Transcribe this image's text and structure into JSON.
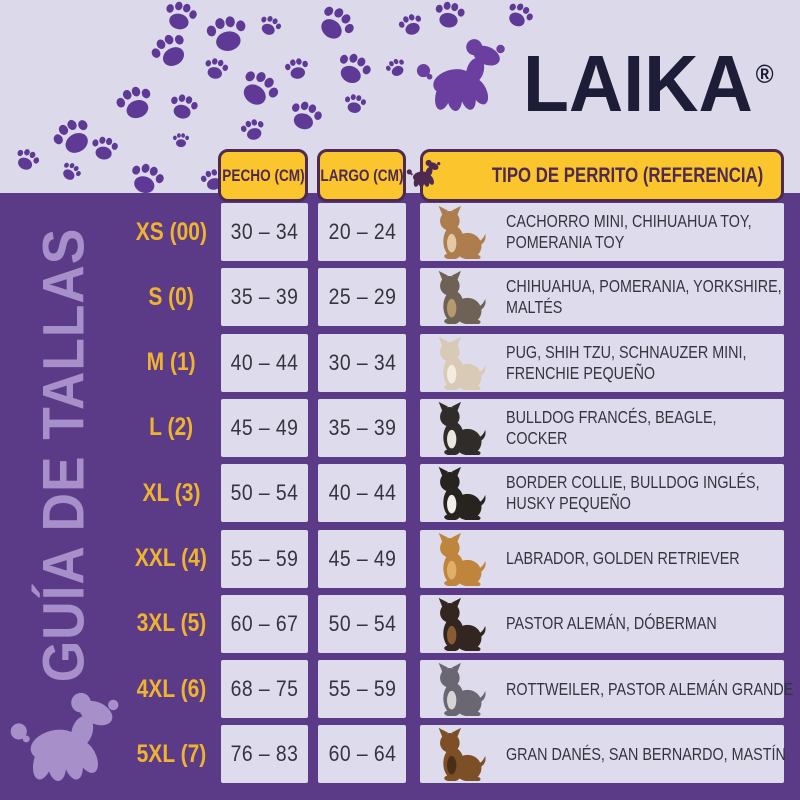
{
  "brand": {
    "name": "LAIKA",
    "registered_mark": "®"
  },
  "sidebar": {
    "title": "GUÍA DE TALLAS"
  },
  "table": {
    "headers": {
      "chest": "PECHO (CM)",
      "length": "LARGO (CM)",
      "reference": "TIPO DE PERRITO (REFERENCIA)"
    },
    "rows": [
      {
        "size": "XS (00)",
        "chest_cm": "30 – 34",
        "length_cm": "20 – 24",
        "breeds": [
          "CACHORRO MINI, CHIHUAHUA TOY,",
          "POMERANIA TOY"
        ],
        "dog": "chihuahua",
        "dog_color": "#ad7d4e",
        "dog_accent": "#e3c9a4"
      },
      {
        "size": "S (0)",
        "chest_cm": "35 – 39",
        "length_cm": "25 – 29",
        "breeds": [
          "CHIHUAHUA, POMERANIA, YORKSHIRE,",
          "MALTÉS"
        ],
        "dog": "yorkshire",
        "dog_color": "#6e6256",
        "dog_accent": "#b59a6d"
      },
      {
        "size": "M (1)",
        "chest_cm": "40 – 44",
        "length_cm": "30 – 34",
        "breeds": [
          "PUG, SHIH TZU, SCHNAUZER MINI,",
          "FRENCHIE PEQUEÑO"
        ],
        "dog": "shih-tzu",
        "dog_color": "#d8cab4",
        "dog_accent": "#f4ece0"
      },
      {
        "size": "L (2)",
        "chest_cm": "45 – 49",
        "length_cm": "35 – 39",
        "breeds": [
          "BULLDOG FRANCÉS, BEAGLE,",
          "COCKER"
        ],
        "dog": "french-bulldog",
        "dog_color": "#2f2c2a",
        "dog_accent": "#e9e6e0"
      },
      {
        "size": "XL (3)",
        "chest_cm": "50 – 54",
        "length_cm": "40 – 44",
        "breeds": [
          "BORDER COLLIE, BULLDOG INGLÉS,",
          "HUSKY PEQUEÑO"
        ],
        "dog": "border-collie",
        "dog_color": "#27241f",
        "dog_accent": "#f2efe9"
      },
      {
        "size": "XXL (4)",
        "chest_cm": "55 – 59",
        "length_cm": "45 – 49",
        "breeds": [
          "LABRADOR, GOLDEN RETRIEVER"
        ],
        "dog": "golden-retriever",
        "dog_color": "#c0853c",
        "dog_accent": "#e0b06a"
      },
      {
        "size": "3XL (5)",
        "chest_cm": "60 – 67",
        "length_cm": "50 – 54",
        "breeds": [
          "PASTOR ALEMÁN, DÓBERMAN"
        ],
        "dog": "doberman",
        "dog_color": "#332621",
        "dog_accent": "#8a5a33"
      },
      {
        "size": "4XL (6)",
        "chest_cm": "68 – 75",
        "length_cm": "55 – 59",
        "breeds": [
          "ROTTWEILER, PASTOR ALEMÁN GRANDE"
        ],
        "dog": "pitbull",
        "dog_color": "#6a6672",
        "dog_accent": "#d9d4d4"
      },
      {
        "size": "5XL (7)",
        "chest_cm": "76 – 83",
        "length_cm": "60 – 64",
        "breeds": [
          "GRAN DANÉS, SAN BERNARDO, MASTÍN"
        ],
        "dog": "mastiff",
        "dog_color": "#7d4f26",
        "dog_accent": "#4a2f17"
      }
    ]
  },
  "colors": {
    "background": "#dcdaea",
    "panel_purple": "#5b3b87",
    "paw": "#5e3a96",
    "logo_purple": "#6a3fa0",
    "badge_yellow": "#fbc52d",
    "badge_text": "#4e2a52",
    "label_yellow": "#efb42d",
    "cell_bg": "#dedcec",
    "cell_text": "#34343f",
    "wordmark": "#1d1d37",
    "band_light": "#a78fc9"
  }
}
